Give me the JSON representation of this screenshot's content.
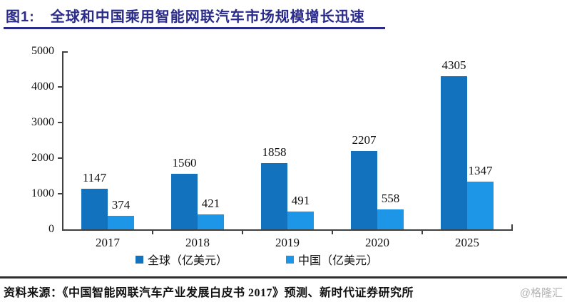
{
  "header": {
    "figure_label": "图1:",
    "title": "全球和中国乘用智能网联汽车市场规模增长迅速"
  },
  "chart_data": {
    "type": "bar",
    "title": "全球和中国乘用智能网联汽车市场规模增长迅速",
    "categories": [
      "2017",
      "2018",
      "2019",
      "2020",
      "2025"
    ],
    "series": [
      {
        "name": "全球（亿美元）",
        "color": "#1272bd",
        "values": [
          1147,
          1560,
          1858,
          2207,
          4305
        ]
      },
      {
        "name": "中国（亿美元）",
        "color": "#1e96e8",
        "values": [
          374,
          421,
          491,
          558,
          1347
        ]
      }
    ],
    "ylim": [
      0,
      5000
    ],
    "yticks": [
      0,
      1000,
      2000,
      3000,
      4000,
      5000
    ],
    "xlabel": "",
    "ylabel": "",
    "grid": false,
    "legend_position": "bottom",
    "bar_labels": true
  },
  "footer": {
    "source": "资料来源：《中国智能网联汽车产业发展白皮书 2017》预测、新时代证券研究所",
    "watermark": "@格隆汇"
  }
}
